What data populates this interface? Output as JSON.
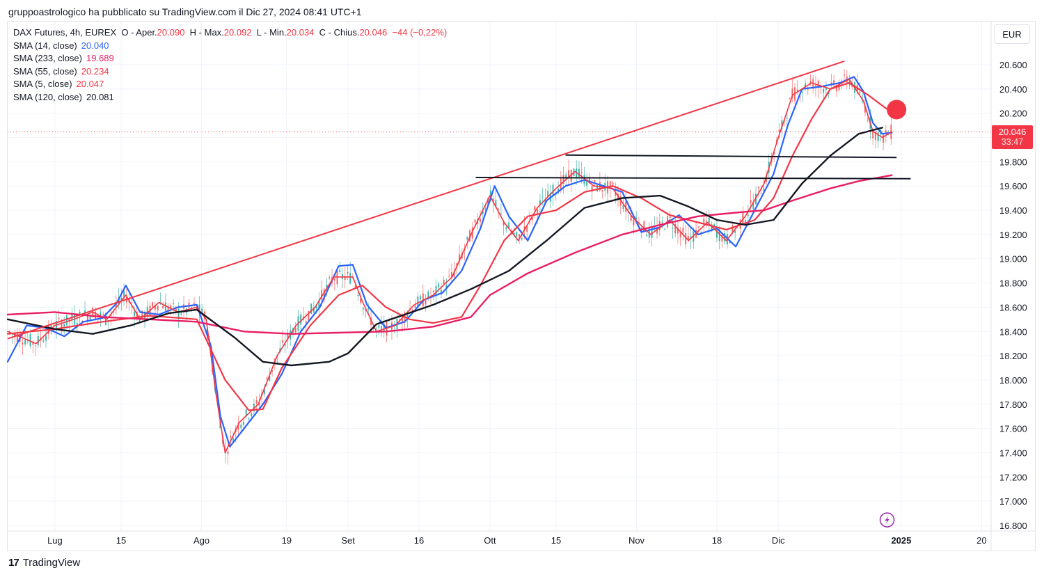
{
  "header": {
    "published_by": "gruppoastrologico ha pubblicato su TradingView.com il Dic 27, 2024 08:41 UTC+1"
  },
  "legend": {
    "instrument": "DAX Futures, 4h, EUREX",
    "open_label": "O - Aper.",
    "open": "20.090",
    "high_label": "H - Max.",
    "high": "20.092",
    "low_label": "L - Min.",
    "low": "20.034",
    "close_label": "C - Chius.",
    "close": "20.046",
    "change": "−44 (−0,22%)",
    "indicators": [
      {
        "label": "SMA (14, close)",
        "value": "20.040",
        "color": "#2962ff"
      },
      {
        "label": "SMA (233, close)",
        "value": "19.689",
        "color": "#e91e63"
      },
      {
        "label": "SMA (55, close)",
        "value": "20.234",
        "color": "#f23645"
      },
      {
        "label": "SMA (5, close)",
        "value": "20.047",
        "color": "#f23645"
      },
      {
        "label": "SMA (120, close)",
        "value": "20.081",
        "color": "#131722"
      }
    ]
  },
  "currency": "EUR",
  "last_price": {
    "value": "20.046",
    "countdown": "33:47"
  },
  "footer": {
    "brand": "TradingView"
  },
  "chart_data": {
    "type": "line",
    "title": "DAX Futures, 4h, EUREX",
    "xlabel": "",
    "ylabel": "",
    "ylim": [
      16700,
      20750
    ],
    "y_ticks": [
      "16.800",
      "17.000",
      "17.200",
      "17.400",
      "17.600",
      "17.800",
      "18.000",
      "18.200",
      "18.400",
      "18.600",
      "18.800",
      "19.000",
      "19.200",
      "19.400",
      "19.600",
      "19.800",
      "20.000",
      "20.200",
      "20.400",
      "20.600"
    ],
    "y_tick_values": [
      16800,
      17000,
      17200,
      17400,
      17600,
      17800,
      18000,
      18200,
      18400,
      18600,
      18800,
      19000,
      19200,
      19400,
      19600,
      19800,
      20000,
      20200,
      20400,
      20600
    ],
    "x_ticks": [
      "Lug",
      "15",
      "Ago",
      "19",
      "Set",
      "16",
      "Ott",
      "15",
      "Nov",
      "18",
      "Dic",
      "2025",
      "20"
    ],
    "x_tick_days": [
      0,
      14,
      31,
      49,
      62,
      77,
      92,
      106,
      123,
      140,
      153,
      179,
      196
    ],
    "x_range_days": [
      -10,
      198
    ],
    "x_unit": "days since 2024-07-01",
    "series": [
      {
        "name": "SMA (14, close)",
        "color": "#2962ff",
        "points": [
          [
            -10,
            18150
          ],
          [
            -6,
            18450
          ],
          [
            -2,
            18430
          ],
          [
            2,
            18360
          ],
          [
            6,
            18480
          ],
          [
            10,
            18510
          ],
          [
            13,
            18630
          ],
          [
            15,
            18780
          ],
          [
            18,
            18560
          ],
          [
            22,
            18540
          ],
          [
            26,
            18600
          ],
          [
            30,
            18620
          ],
          [
            33,
            18280
          ],
          [
            35,
            17700
          ],
          [
            37,
            17450
          ],
          [
            40,
            17600
          ],
          [
            44,
            17800
          ],
          [
            48,
            18050
          ],
          [
            52,
            18400
          ],
          [
            56,
            18600
          ],
          [
            60,
            18940
          ],
          [
            63,
            18950
          ],
          [
            66,
            18620
          ],
          [
            70,
            18430
          ],
          [
            74,
            18480
          ],
          [
            78,
            18660
          ],
          [
            82,
            18720
          ],
          [
            86,
            18900
          ],
          [
            90,
            19250
          ],
          [
            93,
            19600
          ],
          [
            96,
            19350
          ],
          [
            100,
            19150
          ],
          [
            104,
            19480
          ],
          [
            108,
            19600
          ],
          [
            112,
            19650
          ],
          [
            116,
            19600
          ],
          [
            120,
            19550
          ],
          [
            124,
            19220
          ],
          [
            128,
            19260
          ],
          [
            132,
            19360
          ],
          [
            136,
            19200
          ],
          [
            140,
            19250
          ],
          [
            144,
            19100
          ],
          [
            148,
            19400
          ],
          [
            152,
            19700
          ],
          [
            155,
            20100
          ],
          [
            158,
            20400
          ],
          [
            162,
            20420
          ],
          [
            166,
            20450
          ],
          [
            169,
            20500
          ],
          [
            171,
            20380
          ],
          [
            173,
            20120
          ],
          [
            175,
            20030
          ],
          [
            177,
            20040
          ]
        ]
      },
      {
        "name": "SMA (5, close)",
        "color": "#f23645",
        "points": [
          [
            -10,
            18400
          ],
          [
            -4,
            18300
          ],
          [
            0,
            18450
          ],
          [
            4,
            18500
          ],
          [
            8,
            18560
          ],
          [
            11,
            18500
          ],
          [
            15,
            18700
          ],
          [
            18,
            18500
          ],
          [
            22,
            18640
          ],
          [
            26,
            18560
          ],
          [
            30,
            18600
          ],
          [
            32,
            18500
          ],
          [
            34,
            17900
          ],
          [
            36,
            17400
          ],
          [
            39,
            17650
          ],
          [
            43,
            17800
          ],
          [
            47,
            18200
          ],
          [
            51,
            18450
          ],
          [
            55,
            18600
          ],
          [
            59,
            18850
          ],
          [
            63,
            18850
          ],
          [
            65,
            18650
          ],
          [
            68,
            18400
          ],
          [
            72,
            18450
          ],
          [
            76,
            18620
          ],
          [
            80,
            18700
          ],
          [
            84,
            18850
          ],
          [
            88,
            19200
          ],
          [
            92,
            19520
          ],
          [
            95,
            19300
          ],
          [
            98,
            19150
          ],
          [
            102,
            19420
          ],
          [
            106,
            19580
          ],
          [
            110,
            19720
          ],
          [
            114,
            19600
          ],
          [
            118,
            19580
          ],
          [
            122,
            19350
          ],
          [
            126,
            19200
          ],
          [
            130,
            19320
          ],
          [
            134,
            19150
          ],
          [
            138,
            19300
          ],
          [
            142,
            19150
          ],
          [
            146,
            19350
          ],
          [
            150,
            19620
          ],
          [
            153,
            20000
          ],
          [
            156,
            20350
          ],
          [
            160,
            20450
          ],
          [
            164,
            20400
          ],
          [
            168,
            20480
          ],
          [
            171,
            20300
          ],
          [
            173,
            20050
          ],
          [
            175,
            20000
          ],
          [
            177,
            20047
          ]
        ]
      },
      {
        "name": "SMA (55, close)",
        "color": "#f23645",
        "points": [
          [
            -10,
            18380
          ],
          [
            0,
            18420
          ],
          [
            10,
            18480
          ],
          [
            20,
            18530
          ],
          [
            30,
            18500
          ],
          [
            36,
            18000
          ],
          [
            41,
            17750
          ],
          [
            44,
            17760
          ],
          [
            48,
            18100
          ],
          [
            54,
            18450
          ],
          [
            60,
            18700
          ],
          [
            65,
            18780
          ],
          [
            70,
            18600
          ],
          [
            75,
            18500
          ],
          [
            80,
            18470
          ],
          [
            86,
            18520
          ],
          [
            90,
            18780
          ],
          [
            95,
            19150
          ],
          [
            100,
            19350
          ],
          [
            106,
            19400
          ],
          [
            112,
            19550
          ],
          [
            118,
            19600
          ],
          [
            124,
            19500
          ],
          [
            130,
            19360
          ],
          [
            136,
            19300
          ],
          [
            142,
            19240
          ],
          [
            148,
            19320
          ],
          [
            152,
            19500
          ],
          [
            156,
            19850
          ],
          [
            160,
            20150
          ],
          [
            164,
            20400
          ],
          [
            168,
            20450
          ],
          [
            172,
            20350
          ],
          [
            176,
            20234
          ]
        ]
      },
      {
        "name": "SMA (233, close)",
        "color": "#e91e63",
        "points": [
          [
            -10,
            18540
          ],
          [
            0,
            18560
          ],
          [
            10,
            18520
          ],
          [
            20,
            18500
          ],
          [
            30,
            18480
          ],
          [
            40,
            18400
          ],
          [
            50,
            18380
          ],
          [
            60,
            18390
          ],
          [
            70,
            18400
          ],
          [
            80,
            18440
          ],
          [
            88,
            18520
          ],
          [
            92,
            18700
          ],
          [
            100,
            18880
          ],
          [
            110,
            19050
          ],
          [
            120,
            19200
          ],
          [
            128,
            19280
          ],
          [
            136,
            19350
          ],
          [
            144,
            19380
          ],
          [
            150,
            19400
          ],
          [
            156,
            19480
          ],
          [
            164,
            19580
          ],
          [
            170,
            19640
          ],
          [
            177,
            19689
          ]
        ]
      },
      {
        "name": "SMA (120, close)",
        "color": "#131722",
        "points": [
          [
            -10,
            18500
          ],
          [
            0,
            18420
          ],
          [
            8,
            18380
          ],
          [
            16,
            18450
          ],
          [
            24,
            18550
          ],
          [
            30,
            18580
          ],
          [
            38,
            18350
          ],
          [
            44,
            18150
          ],
          [
            50,
            18120
          ],
          [
            58,
            18150
          ],
          [
            62,
            18220
          ],
          [
            68,
            18460
          ],
          [
            74,
            18540
          ],
          [
            80,
            18620
          ],
          [
            88,
            18750
          ],
          [
            96,
            18900
          ],
          [
            104,
            19150
          ],
          [
            112,
            19420
          ],
          [
            120,
            19500
          ],
          [
            128,
            19520
          ],
          [
            134,
            19430
          ],
          [
            140,
            19320
          ],
          [
            146,
            19280
          ],
          [
            152,
            19320
          ],
          [
            158,
            19620
          ],
          [
            164,
            19850
          ],
          [
            170,
            20030
          ],
          [
            175,
            20081
          ]
        ]
      }
    ],
    "trendlines": [
      {
        "name": "red-resistance-trendline",
        "color": "#f23645",
        "from": [
          -10,
          18340
        ],
        "to": [
          167,
          20630
        ]
      },
      {
        "name": "black-support-line-upper",
        "color": "#131722",
        "from": [
          108,
          19855
        ],
        "to": [
          178,
          19835
        ]
      },
      {
        "name": "black-support-line-lower",
        "color": "#131722",
        "from": [
          89,
          19670
        ],
        "to": [
          181,
          19660
        ]
      }
    ],
    "marker": {
      "name": "red-circle-marker",
      "day": 178,
      "price": 20230,
      "color": "#f23645"
    },
    "last_price_line": 20046
  }
}
